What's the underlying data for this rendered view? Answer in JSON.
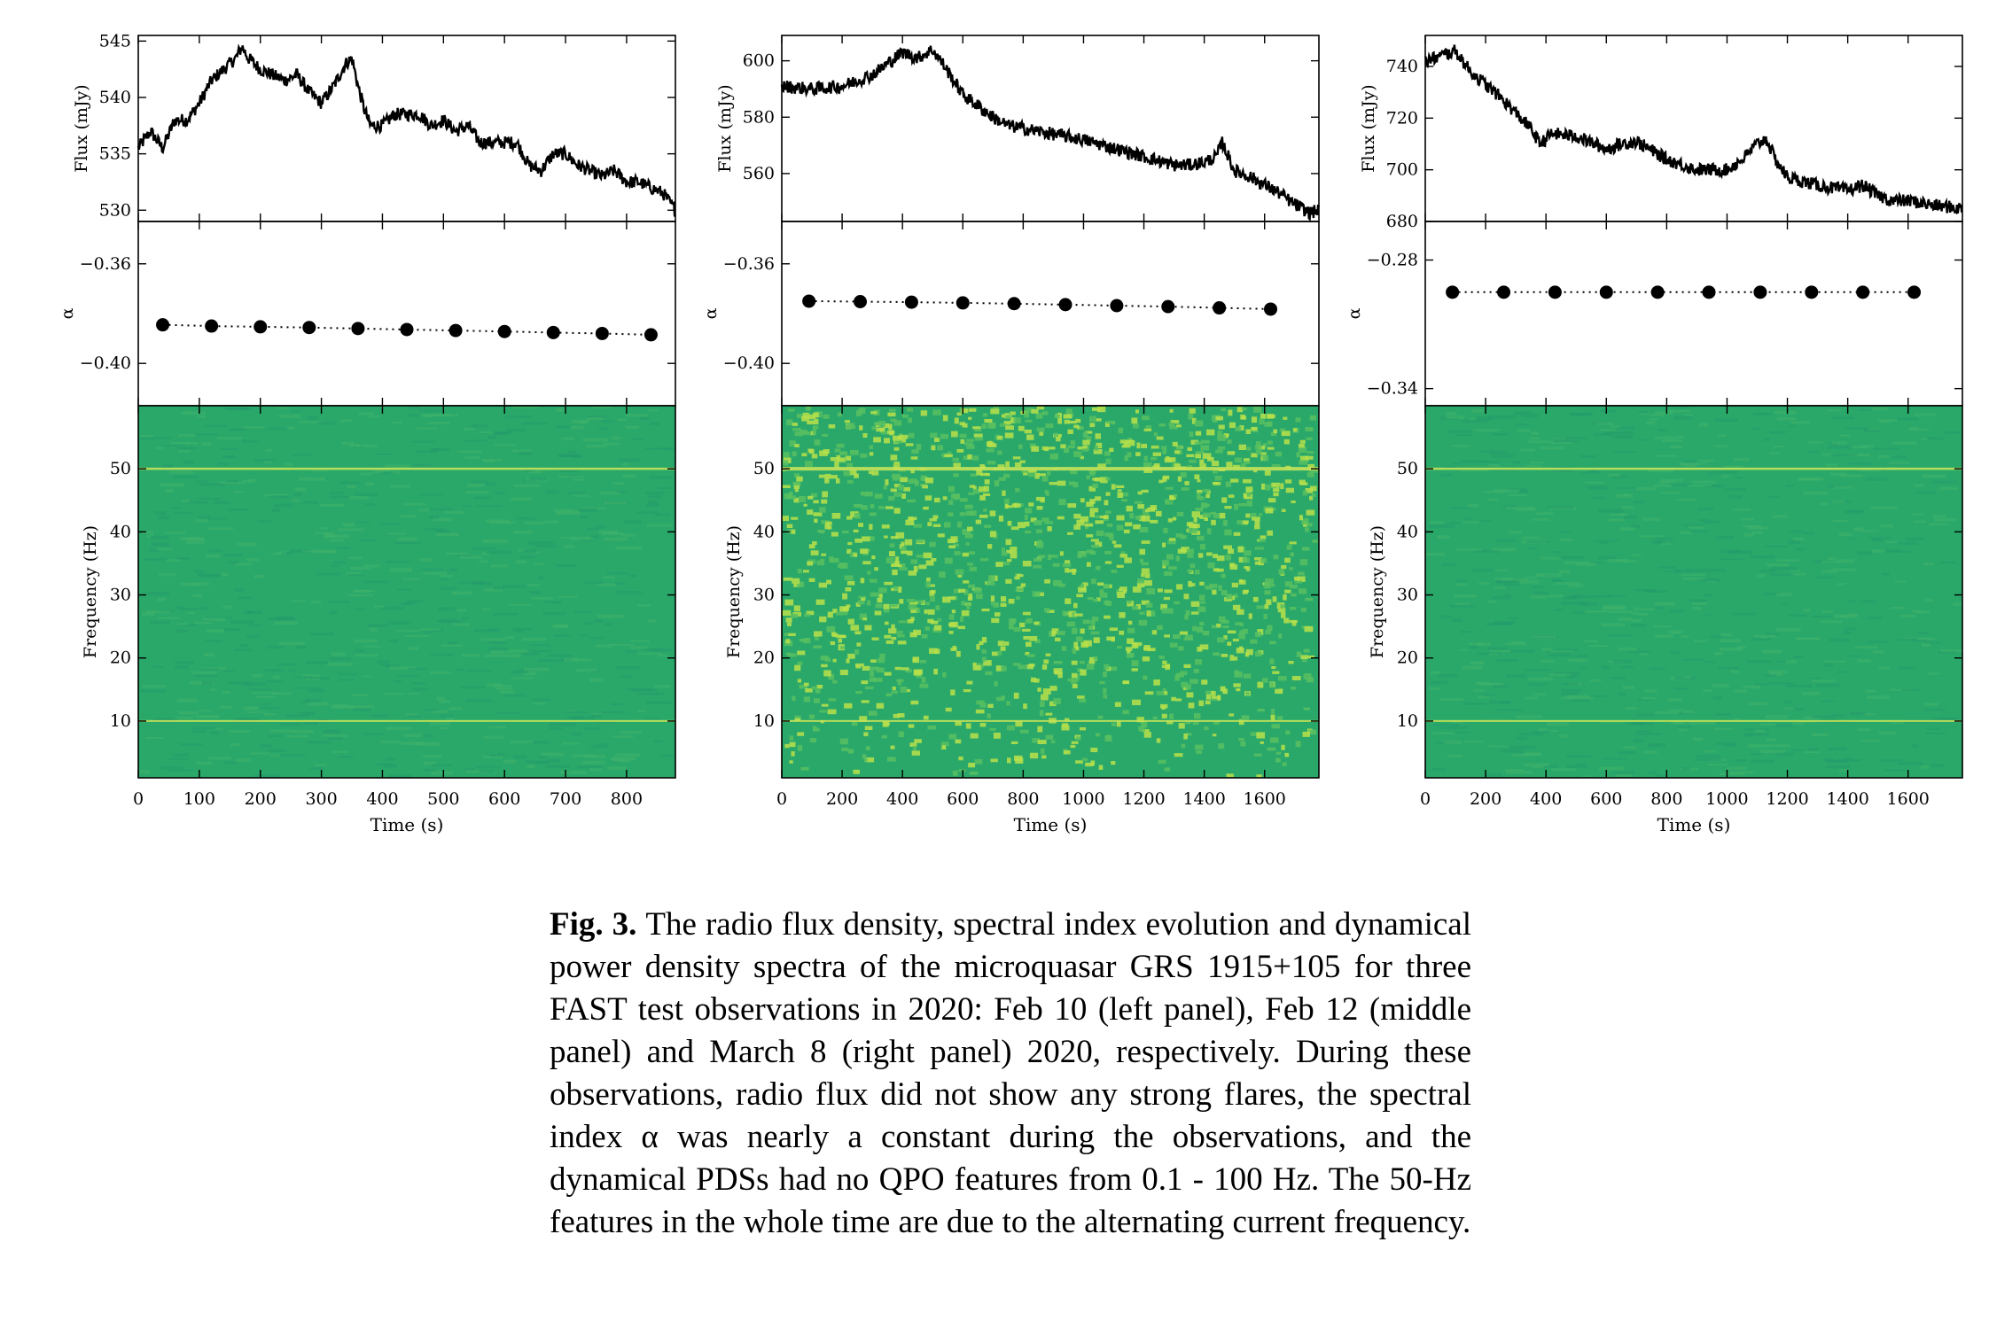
{
  "figure": {
    "caption_label": "Fig. 3.",
    "caption_text": "The radio flux density, spectral index evolution and dynamical power density spectra of the microquasar GRS 1915+105 for three FAST test observations in 2020: Feb 10 (left panel), Feb 12 (middle panel) and March 8 (right panel) 2020, respectively. During these observations, radio flux did not show any strong flares, the spectral index α was nearly a constant during the observations, and the dynamical PDSs had no QPO features from 0.1 - 100 Hz. The 50-Hz features in the whole time are due to the alternating current frequency."
  },
  "colors": {
    "line": "#000000",
    "spectrogram_base": "#2aa86a",
    "spectrogram_bright": "#b8e04a",
    "mains_line": "#c6e35a"
  },
  "chart_data": [
    {
      "type": "line",
      "panel": "left",
      "xlabel": "Time (s)",
      "x_ticks": [
        0,
        100,
        200,
        300,
        400,
        500,
        600,
        700,
        800
      ],
      "xlim": [
        0,
        880
      ],
      "flux": {
        "ylabel": "Flux (mJy)",
        "ylim": [
          529,
          545.5
        ],
        "y_ticks": [
          530,
          535,
          540,
          545
        ],
        "x": [
          0,
          20,
          40,
          60,
          80,
          100,
          120,
          140,
          160,
          170,
          180,
          200,
          220,
          240,
          260,
          280,
          300,
          320,
          340,
          350,
          360,
          370,
          380,
          400,
          420,
          440,
          460,
          480,
          500,
          520,
          540,
          560,
          580,
          600,
          620,
          640,
          660,
          680,
          700,
          720,
          740,
          760,
          780,
          800,
          820,
          840,
          860,
          880
        ],
        "y": [
          535.5,
          537,
          535.5,
          538,
          538,
          539.5,
          541.5,
          542.5,
          543.5,
          544.5,
          543.5,
          542.5,
          542,
          541.5,
          542,
          540.5,
          539.5,
          541,
          543,
          543.5,
          541,
          539,
          537.5,
          537.5,
          538.5,
          538.5,
          538.5,
          537.5,
          538,
          537,
          537.5,
          536,
          536,
          536,
          536,
          534,
          533.5,
          535,
          535,
          534,
          533.5,
          533,
          533.5,
          532.5,
          532.5,
          532,
          531.5,
          530
        ]
      },
      "alpha": {
        "ylabel": "α",
        "ylim": [
          -0.417,
          -0.343
        ],
        "y_ticks": [
          -0.36,
          -0.4
        ],
        "x": [
          40,
          120,
          200,
          280,
          360,
          440,
          520,
          600,
          680,
          760,
          840
        ],
        "y": [
          -0.3845,
          -0.385,
          -0.3853,
          -0.3856,
          -0.386,
          -0.3864,
          -0.3868,
          -0.3872,
          -0.3876,
          -0.388,
          -0.3885
        ]
      },
      "pds": {
        "type": "heatmap",
        "ylabel": "Frequency (Hz)",
        "ylim": [
          1,
          60
        ],
        "y_ticks": [
          10,
          20,
          30,
          40,
          50
        ],
        "features_hz": [
          50,
          10
        ],
        "activity": "low"
      }
    },
    {
      "type": "line",
      "panel": "middle",
      "xlabel": "Time (s)",
      "x_ticks": [
        0,
        200,
        400,
        600,
        800,
        1000,
        1200,
        1400,
        1600
      ],
      "xlim": [
        0,
        1780
      ],
      "flux": {
        "ylabel": "Flux (mJy)",
        "ylim": [
          543,
          609
        ],
        "y_ticks": [
          560,
          580,
          600
        ],
        "x": [
          0,
          100,
          200,
          300,
          350,
          400,
          450,
          500,
          540,
          600,
          650,
          700,
          750,
          800,
          850,
          900,
          1000,
          1100,
          1200,
          1300,
          1350,
          1400,
          1440,
          1460,
          1480,
          1500,
          1550,
          1600,
          1650,
          1700,
          1750,
          1780
        ],
        "y": [
          591,
          590,
          591,
          595,
          599,
          603,
          601,
          604,
          598,
          588,
          584,
          580,
          577,
          576,
          575,
          574,
          572,
          569,
          566,
          563,
          563,
          564,
          566,
          571,
          566,
          561,
          559,
          556,
          553,
          549,
          546,
          547
        ]
      },
      "alpha": {
        "ylabel": "α",
        "ylim": [
          -0.417,
          -0.343
        ],
        "y_ticks": [
          -0.36,
          -0.4
        ],
        "x": [
          90,
          260,
          430,
          600,
          770,
          940,
          1110,
          1280,
          1450,
          1620
        ],
        "y": [
          -0.375,
          -0.3752,
          -0.3754,
          -0.3757,
          -0.376,
          -0.3764,
          -0.3768,
          -0.3772,
          -0.3777,
          -0.3782
        ]
      },
      "pds": {
        "type": "heatmap",
        "ylabel": "Frequency (Hz)",
        "ylim": [
          1,
          60
        ],
        "y_ticks": [
          10,
          20,
          30,
          40,
          50
        ],
        "features_hz": [
          50,
          10
        ],
        "activity": "high"
      }
    },
    {
      "type": "line",
      "panel": "right",
      "xlabel": "Time (s)",
      "x_ticks": [
        0,
        200,
        400,
        600,
        800,
        1000,
        1200,
        1400,
        1600
      ],
      "xlim": [
        0,
        1780
      ],
      "flux": {
        "ylabel": "Flux (mJy)",
        "ylim": [
          680,
          752
        ],
        "y_ticks": [
          680,
          700,
          720,
          740
        ],
        "x": [
          0,
          50,
          100,
          150,
          200,
          250,
          300,
          350,
          380,
          420,
          500,
          600,
          650,
          700,
          800,
          900,
          1000,
          1050,
          1100,
          1130,
          1160,
          1200,
          1300,
          1400,
          1450,
          1500,
          1550,
          1600,
          1700,
          1780
        ],
        "y": [
          742,
          744,
          746,
          738,
          733,
          728,
          722,
          716,
          710,
          714,
          713,
          708,
          710,
          711,
          704,
          700,
          700,
          704,
          710,
          712,
          704,
          697,
          694,
          692,
          694,
          690,
          688,
          688,
          686,
          685
        ]
      },
      "alpha": {
        "ylabel": "α",
        "ylim": [
          -0.348,
          -0.262
        ],
        "y_ticks": [
          -0.28,
          -0.34
        ],
        "x": [
          90,
          260,
          430,
          600,
          770,
          940,
          1110,
          1280,
          1450,
          1620
        ],
        "y": [
          -0.295,
          -0.295,
          -0.295,
          -0.295,
          -0.295,
          -0.295,
          -0.295,
          -0.295,
          -0.295,
          -0.295
        ]
      },
      "pds": {
        "type": "heatmap",
        "ylabel": "Frequency (Hz)",
        "ylim": [
          1,
          60
        ],
        "y_ticks": [
          10,
          20,
          30,
          40,
          50
        ],
        "features_hz": [
          50,
          10
        ],
        "activity": "low"
      }
    }
  ]
}
